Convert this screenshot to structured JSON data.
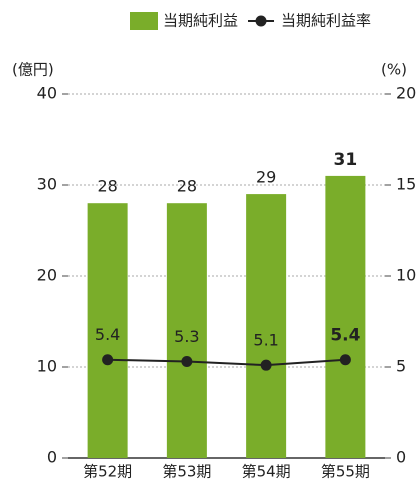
{
  "chart_data": {
    "type": "bar",
    "categories": [
      "第52期",
      "第53期",
      "第54期",
      "第55期"
    ],
    "series": [
      {
        "name": "当期純利益",
        "type": "bar",
        "color": "#7aad2a",
        "values": [
          28,
          28,
          29,
          31
        ]
      },
      {
        "name": "当期純利益率",
        "type": "line",
        "axis": "y2",
        "color": "#222222",
        "values": [
          5.4,
          5.3,
          5.1,
          5.4
        ]
      }
    ],
    "y_unit": "(億円)",
    "y2_unit": "(%)",
    "ylim": [
      0,
      40
    ],
    "yticks": [
      0,
      10,
      20,
      30,
      40
    ],
    "y2lim": [
      0,
      20
    ],
    "y2ticks": [
      0,
      5,
      10,
      15,
      20
    ],
    "grid": true,
    "legend": "top"
  }
}
